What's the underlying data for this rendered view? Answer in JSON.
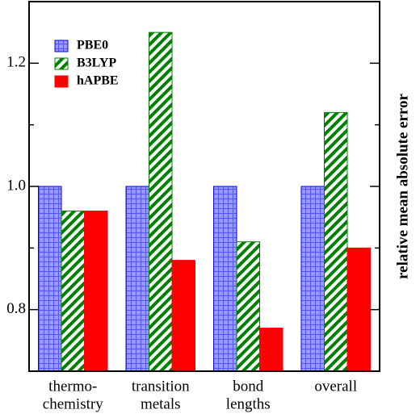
{
  "chart_data": {
    "type": "bar",
    "ylabel": "relative mean absolute error",
    "categories": [
      [
        "thermo-",
        "chemistry"
      ],
      [
        "transition",
        "metals"
      ],
      [
        "bond",
        "lengths"
      ],
      [
        "overall"
      ]
    ],
    "series": [
      {
        "name": "PBE0",
        "color": "#0000ff",
        "pattern": "grid",
        "values": [
          1.0,
          1.0,
          1.0,
          1.0
        ]
      },
      {
        "name": "B3LYP",
        "color": "#008000",
        "pattern": "diagonal",
        "values": [
          0.96,
          1.25,
          0.91,
          1.12
        ]
      },
      {
        "name": "hAPBE",
        "color": "#ff0000",
        "pattern": "solid",
        "values": [
          0.96,
          0.88,
          0.77,
          0.9
        ]
      }
    ],
    "ylim": [
      0.7,
      1.3
    ],
    "yticks": [
      0.8,
      {
        "value": 1,
        "label": "1.0"
      },
      1.2
    ],
    "yminorticks": [
      0.9,
      1.1
    ],
    "legend": "upper left"
  }
}
